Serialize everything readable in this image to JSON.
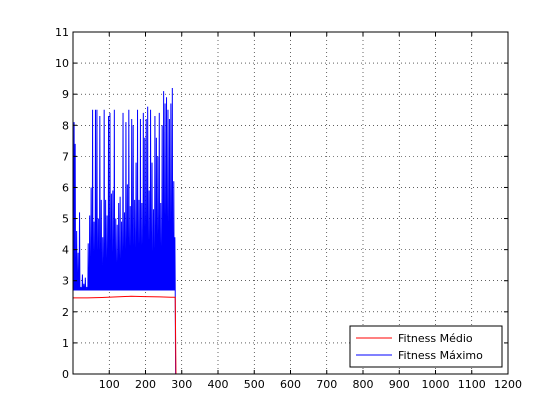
{
  "chart_data": {
    "type": "line",
    "title": "",
    "xlabel": "",
    "ylabel": "",
    "xlim": [
      0,
      1200
    ],
    "ylim": [
      0,
      11
    ],
    "xticks": [
      100,
      200,
      300,
      400,
      500,
      600,
      700,
      800,
      900,
      1000,
      1100,
      1200
    ],
    "yticks": [
      0,
      1,
      2,
      3,
      4,
      5,
      6,
      7,
      8,
      9,
      10,
      11
    ],
    "grid": true,
    "legend_position": "bottom-right",
    "series": [
      {
        "name": "Fitness Médio",
        "color": "#ff0000",
        "x": [
          1,
          10,
          40,
          80,
          120,
          160,
          200,
          240,
          270,
          282,
          284,
          290,
          400,
          600,
          800,
          1000,
          1200
        ],
        "y": [
          2.45,
          2.45,
          2.45,
          2.46,
          2.48,
          2.5,
          2.49,
          2.48,
          2.47,
          2.47,
          0,
          0,
          0,
          0,
          0,
          0,
          0
        ]
      },
      {
        "name": "Fitness Máximo",
        "color": "#0000ff",
        "baseline": 2.7,
        "spike_x": [
          3,
          6,
          10,
          14,
          18,
          22,
          26,
          30,
          34,
          38,
          42,
          46,
          50,
          54,
          58,
          62,
          66,
          70,
          74,
          78,
          82,
          86,
          90,
          94,
          98,
          102,
          106,
          110,
          114,
          118,
          122,
          126,
          130,
          134,
          138,
          142,
          146,
          150,
          154,
          158,
          162,
          166,
          170,
          174,
          178,
          182,
          186,
          190,
          194,
          198,
          202,
          206,
          210,
          214,
          218,
          222,
          226,
          230,
          234,
          238,
          242,
          246,
          250,
          254,
          258,
          262,
          266,
          270,
          274,
          278,
          281
        ],
        "spike_y": [
          8.1,
          7.4,
          4.6,
          3.9,
          5.2,
          2.8,
          3.2,
          2.9,
          3.1,
          2.8,
          4.2,
          5.1,
          6.0,
          8.5,
          4.9,
          8.5,
          8.5,
          5.0,
          8.3,
          5.6,
          4.4,
          8.5,
          5.6,
          5.1,
          8.3,
          8.4,
          5.8,
          5.9,
          8.5,
          5.0,
          4.8,
          5.5,
          5.7,
          4.9,
          8.4,
          5.2,
          8.1,
          6.1,
          8.5,
          5.4,
          8.2,
          8.0,
          5.6,
          6.8,
          8.5,
          5.6,
          8.2,
          5.5,
          8.4,
          7.6,
          8.2,
          8.6,
          5.9,
          8.5,
          6.8,
          5.3,
          8.3,
          7.6,
          7.0,
          8.4,
          5.5,
          8.0,
          9.1,
          8.7,
          8.9,
          8.5,
          8.2,
          8.7,
          9.2,
          6.2,
          4.4
        ],
        "drop_x": 283,
        "after_drop_y": 0,
        "end_x": 1200
      }
    ]
  }
}
